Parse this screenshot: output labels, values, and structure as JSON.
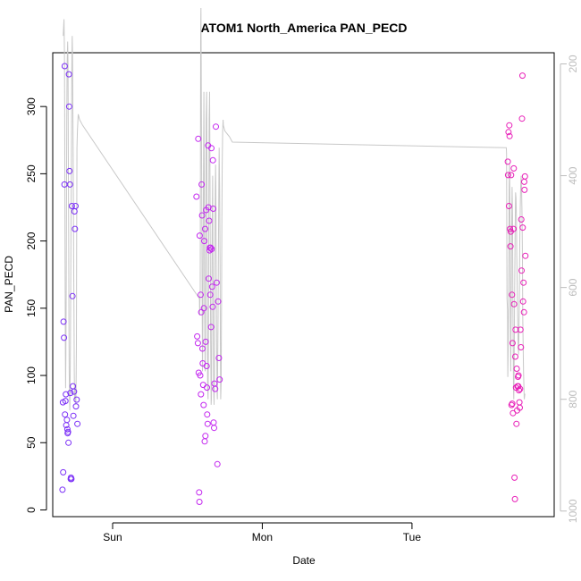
{
  "chart_data": {
    "type": "scatter",
    "title": "ATOM1 North_America PAN_PECD",
    "xlabel": "Date",
    "ylabel": "PAN_PECD",
    "ylim": [
      -5,
      340
    ],
    "y_ticks": [
      0,
      50,
      100,
      150,
      200,
      250,
      300
    ],
    "x_ticks": [
      {
        "label": "Sun",
        "day": 1.0
      },
      {
        "label": "Mon",
        "day": 2.0
      },
      {
        "label": "Tue",
        "day": 3.0
      }
    ],
    "xlim": [
      0.6,
      3.95
    ],
    "secondary_axis": {
      "side": "right",
      "direction": "reversed",
      "ylim": [
        1010,
        180
      ],
      "ticks": [
        200,
        400,
        600,
        800,
        1000
      ],
      "color": "#bdbdbd"
    },
    "grid": false,
    "legend": "none",
    "colors": {
      "day1": "#7b2ff7",
      "day2": "#c327ef",
      "day3": "#e81fb8",
      "line": "#c8c8c8"
    },
    "series": [
      {
        "color_key": "day1",
        "x": [
          0.665,
          0.67,
          0.668,
          0.672,
          0.675,
          0.678,
          0.68,
          0.682,
          0.685,
          0.688,
          0.69,
          0.695,
          0.698,
          0.7,
          0.702,
          0.705,
          0.708,
          0.71,
          0.712,
          0.715,
          0.718,
          0.72,
          0.722,
          0.725,
          0.728,
          0.732,
          0.735,
          0.738,
          0.742,
          0.745,
          0.748,
          0.752,
          0.755,
          0.76,
          0.765
        ],
        "y": [
          15,
          28,
          80,
          140,
          128,
          242,
          330,
          71,
          81,
          86,
          63,
          67,
          60,
          57,
          58,
          50,
          324,
          300,
          252,
          242,
          87,
          23,
          24,
          23,
          226,
          159,
          92,
          70,
          88,
          222,
          209,
          226,
          77,
          82,
          64
        ]
      },
      {
        "color_key": "day2",
        "x": [
          1.56,
          1.565,
          1.57,
          1.572,
          1.575,
          1.578,
          1.58,
          1.582,
          1.585,
          1.588,
          1.59,
          1.592,
          1.595,
          1.598,
          1.6,
          1.602,
          1.605,
          1.608,
          1.61,
          1.612,
          1.615,
          1.618,
          1.62,
          1.622,
          1.625,
          1.628,
          1.63,
          1.632,
          1.635,
          1.638,
          1.64,
          1.642,
          1.645,
          1.648,
          1.65,
          1.652,
          1.655,
          1.658,
          1.66,
          1.662,
          1.665,
          1.668,
          1.67,
          1.672,
          1.675,
          1.678,
          1.68,
          1.685,
          1.69,
          1.695,
          1.7,
          1.705,
          1.71,
          1.715
        ],
        "y": [
          233,
          129,
          124,
          276,
          102,
          13,
          6,
          204,
          100,
          160,
          86,
          147,
          242,
          219,
          120,
          109,
          93,
          78,
          150,
          200,
          51,
          209,
          55,
          125,
          223,
          107,
          91,
          71,
          64,
          271,
          225,
          172,
          215,
          193,
          195,
          160,
          195,
          136,
          269,
          194,
          166,
          151,
          260,
          224,
          65,
          61,
          94,
          90,
          285,
          169,
          34,
          155,
          113,
          97
        ]
      },
      {
        "color_key": "day3",
        "x": [
          3.64,
          3.642,
          3.645,
          3.648,
          3.65,
          3.652,
          3.655,
          3.658,
          3.66,
          3.662,
          3.665,
          3.668,
          3.67,
          3.672,
          3.675,
          3.678,
          3.68,
          3.682,
          3.685,
          3.688,
          3.69,
          3.692,
          3.695,
          3.698,
          3.7,
          3.702,
          3.705,
          3.708,
          3.71,
          3.712,
          3.715,
          3.718,
          3.72,
          3.722,
          3.725,
          3.728,
          3.73,
          3.732,
          3.735,
          3.738,
          3.74,
          3.742,
          3.745,
          3.748,
          3.75,
          3.752,
          3.755,
          3.758
        ],
        "y": [
          259,
          249,
          281,
          226,
          286,
          278,
          209,
          196,
          207,
          249,
          78,
          160,
          79,
          124,
          72,
          209,
          254,
          153,
          24,
          8,
          114,
          134,
          91,
          64,
          105,
          74,
          92,
          99,
          92,
          100,
          89,
          80,
          76,
          90,
          134,
          121,
          216,
          178,
          291,
          323,
          210,
          155,
          169,
          147,
          244,
          238,
          248,
          189
        ]
      }
    ],
    "line": {
      "secondary_x": [
        0.67,
        0.675,
        0.678,
        0.68,
        0.682,
        0.684,
        0.686,
        0.688,
        0.69,
        0.692,
        0.694,
        0.696,
        0.698,
        0.7,
        0.702,
        0.704,
        0.706,
        0.708,
        0.71,
        0.712,
        0.714,
        0.716,
        0.718,
        0.72,
        0.722,
        0.724,
        0.726,
        0.728,
        0.73,
        0.732,
        0.734,
        0.736,
        0.738,
        0.74,
        0.742,
        0.744,
        0.746,
        0.748,
        0.75,
        0.752,
        0.754,
        0.756,
        0.758,
        0.76,
        0.762,
        0.765,
        0.77,
        0.78,
        0.8,
        1.58,
        1.582,
        1.585,
        1.588,
        1.59,
        1.592,
        1.595,
        1.598,
        1.6,
        1.602,
        1.605,
        1.608,
        1.61,
        1.612,
        1.615,
        1.618,
        1.62,
        1.622,
        1.625,
        1.628,
        1.63,
        1.632,
        1.635,
        1.638,
        1.64,
        1.642,
        1.645,
        1.648,
        1.65,
        1.652,
        1.655,
        1.658,
        1.66,
        1.662,
        1.665,
        1.668,
        1.67,
        1.672,
        1.675,
        1.678,
        1.68,
        1.682,
        1.685,
        1.688,
        1.69,
        1.692,
        1.695,
        1.698,
        1.7,
        1.702,
        1.705,
        1.708,
        1.71,
        1.712,
        1.715,
        1.718,
        1.72,
        1.722,
        1.725,
        1.728,
        1.73,
        1.732,
        1.735,
        1.738,
        1.74,
        1.75,
        1.78,
        1.8,
        3.63,
        3.632,
        3.635,
        3.638,
        3.64,
        3.643,
        3.646,
        3.649,
        3.652,
        3.655,
        3.658,
        3.66,
        3.663,
        3.666,
        3.669,
        3.672,
        3.675,
        3.678,
        3.68,
        3.683,
        3.686,
        3.689,
        3.692,
        3.695,
        3.698,
        3.7,
        3.703,
        3.706,
        3.709,
        3.712,
        3.715,
        3.718,
        3.72,
        3.723,
        3.726,
        3.729,
        3.732,
        3.735,
        3.738,
        3.74,
        3.745,
        3.75,
        3.755
      ],
      "secondary_y": [
        150,
        120,
        180,
        300,
        500,
        700,
        780,
        720,
        600,
        450,
        300,
        200,
        180,
        160,
        200,
        350,
        500,
        650,
        750,
        800,
        820,
        780,
        700,
        600,
        500,
        400,
        300,
        200,
        150,
        180,
        250,
        350,
        450,
        550,
        650,
        750,
        800,
        790,
        780,
        800,
        810,
        780,
        700,
        500,
        350,
        320,
        290,
        300,
        310,
        620,
        650,
        600,
        150,
        100,
        200,
        400,
        600,
        750,
        700,
        520,
        350,
        250,
        400,
        650,
        750,
        700,
        500,
        300,
        250,
        400,
        600,
        780,
        800,
        700,
        500,
        300,
        250,
        350,
        520,
        700,
        810,
        800,
        700,
        500,
        400,
        500,
        650,
        780,
        810,
        760,
        600,
        450,
        380,
        420,
        550,
        700,
        790,
        800,
        750,
        650,
        500,
        400,
        350,
        420,
        560,
        720,
        800,
        770,
        620,
        480,
        380,
        320,
        300,
        310,
        320,
        330,
        340,
        350,
        360,
        620,
        640,
        760,
        700,
        600,
        420,
        380,
        500,
        700,
        750,
        640,
        500,
        420,
        470,
        650,
        780,
        800,
        720,
        600,
        500,
        430,
        440,
        480,
        540,
        600,
        650,
        700,
        720,
        680,
        600,
        520,
        460,
        420,
        400,
        420,
        470,
        550,
        650,
        750,
        800,
        790,
        700,
        500,
        300
      ]
    }
  }
}
